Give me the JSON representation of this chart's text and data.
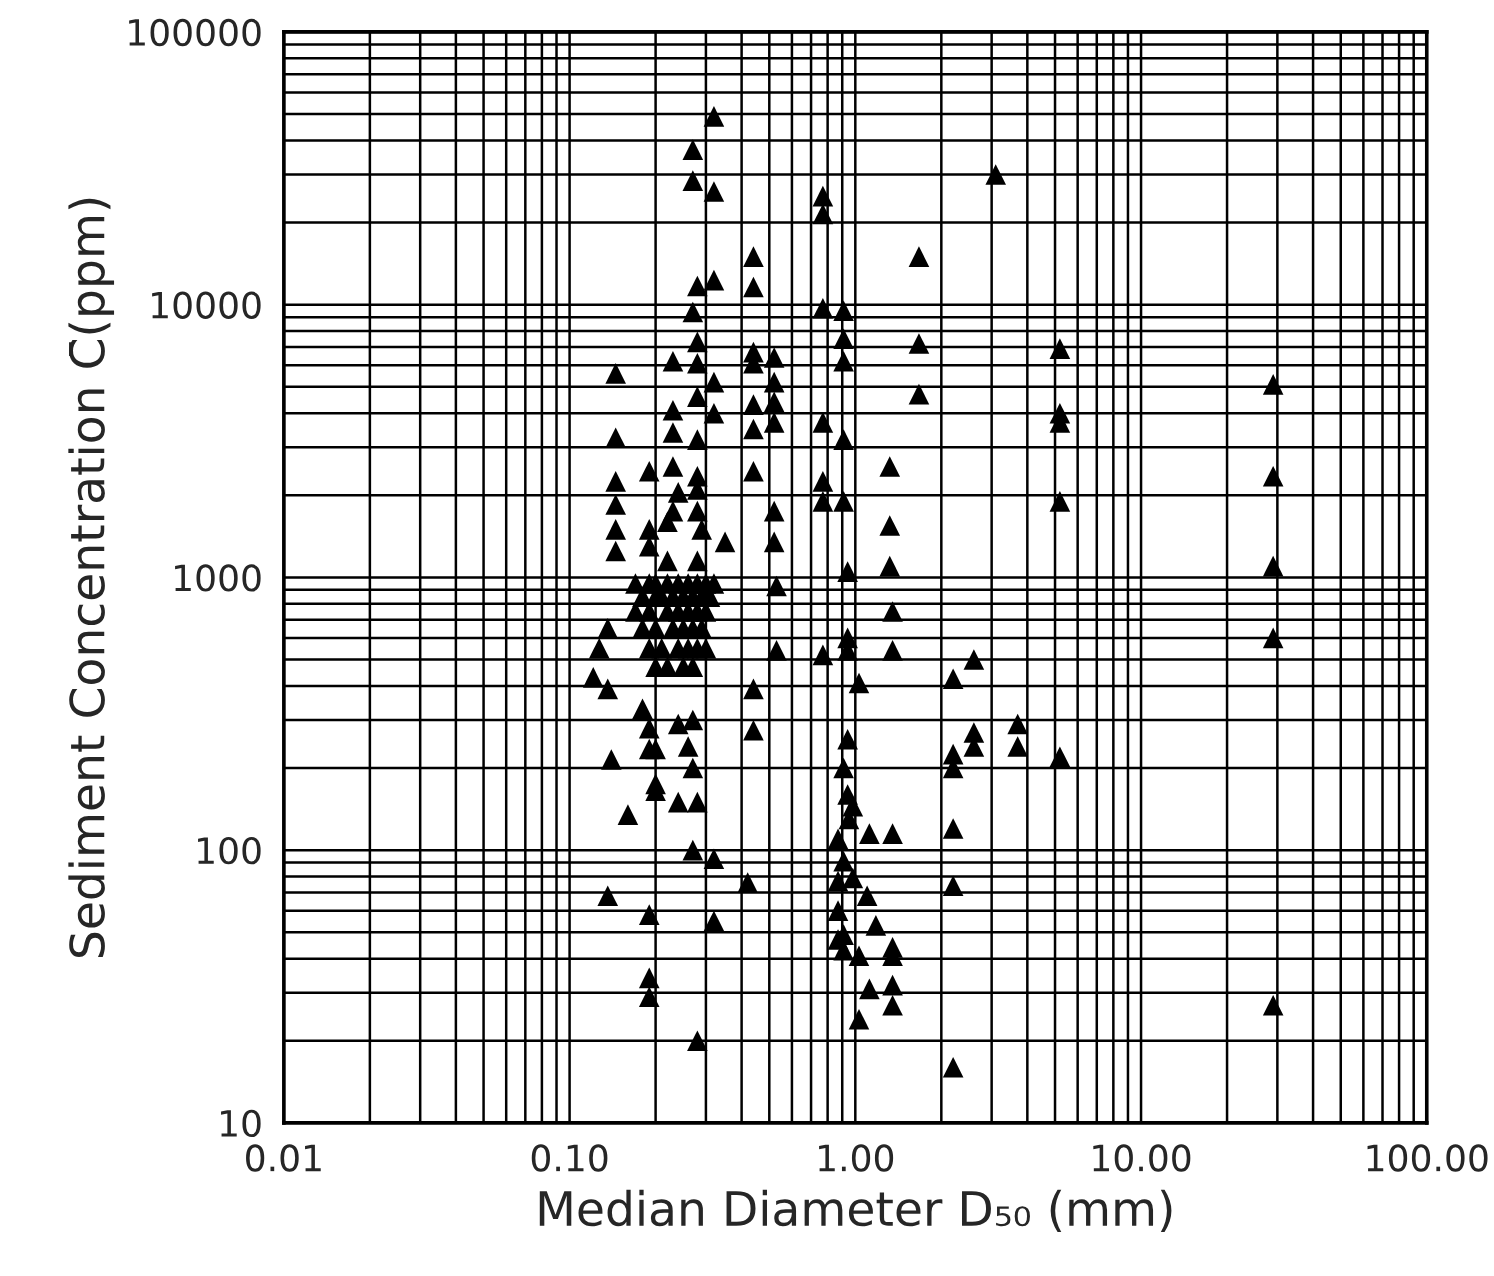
{
  "chart_data": {
    "type": "scatter",
    "xlabel": "Median Diameter D₅₀ (mm)",
    "ylabel": "Sediment Concentration C̄(ppm)",
    "log": "xy",
    "grid": true,
    "marker": "triangle",
    "xlim": [
      0.01,
      100
    ],
    "ylim": [
      10,
      100000
    ],
    "xticks": [
      {
        "value": 0.01,
        "label": "0.01"
      },
      {
        "value": 0.1,
        "label": "0.10"
      },
      {
        "value": 1,
        "label": "1.00"
      },
      {
        "value": 10,
        "label": "10.00"
      },
      {
        "value": 100,
        "label": "100.00"
      }
    ],
    "yticks": [
      10,
      100,
      1000,
      10000,
      100000
    ],
    "series": [
      {
        "color": "#000000",
        "x": [
          0.32,
          0.27,
          0.27,
          0.32,
          0.44,
          0.28,
          0.32,
          0.44,
          0.27,
          0.28,
          0.44,
          0.44,
          0.145,
          0.23,
          0.28,
          0.32,
          0.28,
          0.44,
          0.23,
          0.32,
          0.44,
          0.23,
          0.28,
          0.145,
          0.44,
          0.19,
          0.23,
          0.28,
          0.145,
          0.24,
          0.28,
          0.145,
          0.23,
          0.28,
          0.145,
          0.19,
          0.22,
          0.29,
          0.35,
          0.145,
          0.19,
          0.22,
          0.28,
          0.136,
          0.127,
          0.121,
          0.136,
          0.18,
          0.19,
          0.24,
          0.27,
          0.19,
          0.2,
          0.26,
          0.27,
          0.14,
          0.2,
          0.2,
          0.24,
          0.28,
          0.16,
          0.27,
          0.32,
          0.42,
          0.136,
          0.19,
          0.32,
          0.19,
          0.19,
          0.28,
          0.44,
          0.44,
          0.17,
          0.19,
          0.2,
          0.22,
          0.24,
          0.26,
          0.28,
          0.3,
          0.32,
          0.18,
          0.2,
          0.21,
          0.23,
          0.25,
          0.27,
          0.29,
          0.31,
          0.17,
          0.19,
          0.22,
          0.24,
          0.26,
          0.28,
          0.3,
          0.18,
          0.2,
          0.23,
          0.25,
          0.27,
          0.29,
          0.19,
          0.21,
          0.24,
          0.26,
          0.28,
          0.3,
          0.2,
          0.22,
          0.25,
          0.27,
          0.77,
          0.77,
          3.1,
          1.67,
          0.77,
          0.91,
          0.91,
          0.91,
          1.67,
          1.67,
          5.2,
          5.2,
          5.2,
          5.2,
          29,
          29,
          29,
          0.52,
          0.52,
          0.52,
          0.52,
          0.52,
          0.52,
          0.77,
          0.91,
          0.77,
          0.77,
          0.91,
          1.32,
          1.32,
          1.32,
          0.94,
          0.53,
          1.35,
          29,
          0.53,
          0.77,
          0.94,
          0.94,
          1.35,
          2.6,
          2.2,
          1.03,
          0.94,
          3.7,
          3.7,
          2.6,
          2.6,
          2.2,
          2.2,
          5.2,
          0.91,
          0.94,
          0.98,
          0.95,
          1.12,
          1.35,
          0.87,
          2.2,
          0.91,
          0.98,
          1.1,
          0.87,
          2.2,
          0.87,
          1.18,
          0.91,
          1.35,
          1.35,
          0.91,
          1.03,
          0.87,
          1.12,
          1.35,
          1.35,
          1.03,
          29,
          2.2
        ],
        "values": [
          49000,
          37000,
          28500,
          26000,
          15000,
          11700,
          12300,
          11600,
          9400,
          7300,
          6700,
          6100,
          5600,
          6200,
          6100,
          5200,
          4600,
          4300,
          4100,
          4000,
          3500,
          3400,
          3200,
          3250,
          2450,
          2450,
          2550,
          2350,
          2250,
          2050,
          2100,
          1850,
          1750,
          1750,
          1500,
          1500,
          1600,
          1500,
          1350,
          1250,
          1300,
          1150,
          1150,
          650,
          550,
          430,
          390,
          330,
          280,
          290,
          300,
          235,
          235,
          240,
          200,
          215,
          175,
          165,
          150,
          150,
          135,
          100,
          93,
          76,
          68,
          58,
          55,
          34,
          29,
          20,
          390,
          275,
          950,
          950,
          950,
          950,
          950,
          950,
          950,
          950,
          950,
          850,
          850,
          850,
          850,
          850,
          850,
          850,
          850,
          750,
          750,
          750,
          750,
          750,
          750,
          750,
          650,
          650,
          650,
          650,
          650,
          650,
          550,
          550,
          550,
          550,
          550,
          550,
          470,
          470,
          470,
          470,
          25000,
          21500,
          30000,
          15000,
          9700,
          9500,
          7500,
          6200,
          7200,
          4700,
          6900,
          4000,
          3700,
          1900,
          5100,
          2350,
          1100,
          6400,
          5200,
          4400,
          3700,
          1750,
          1350,
          3700,
          3200,
          2250,
          1900,
          1900,
          2550,
          1550,
          1100,
          1050,
          930,
          750,
          600,
          540,
          520,
          600,
          540,
          540,
          500,
          425,
          410,
          255,
          290,
          240,
          270,
          240,
          225,
          200,
          220,
          200,
          160,
          145,
          130,
          115,
          115,
          110,
          120,
          91,
          79,
          68,
          77,
          74,
          60,
          53,
          49,
          44,
          41,
          43,
          41,
          47,
          31,
          32,
          27,
          24,
          27,
          16
        ]
      }
    ]
  }
}
